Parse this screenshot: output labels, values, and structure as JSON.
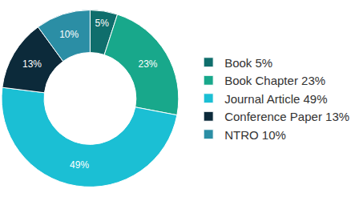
{
  "chart_data": {
    "type": "pie",
    "categories": [
      "Book 5%",
      "Book Chapter 23%",
      "Journal Article 49%",
      "Conference Paper 13%",
      "NTRO 10%"
    ],
    "values": [
      5,
      23,
      49,
      13,
      10
    ],
    "value_labels": [
      "5%",
      "23%",
      "49%",
      "13%",
      "10%"
    ],
    "colors": [
      "#0f6e6c",
      "#18a88b",
      "#1bbfd4",
      "#0c2a3a",
      "#2b8ea5"
    ],
    "data_labels": true,
    "legend": "right"
  }
}
